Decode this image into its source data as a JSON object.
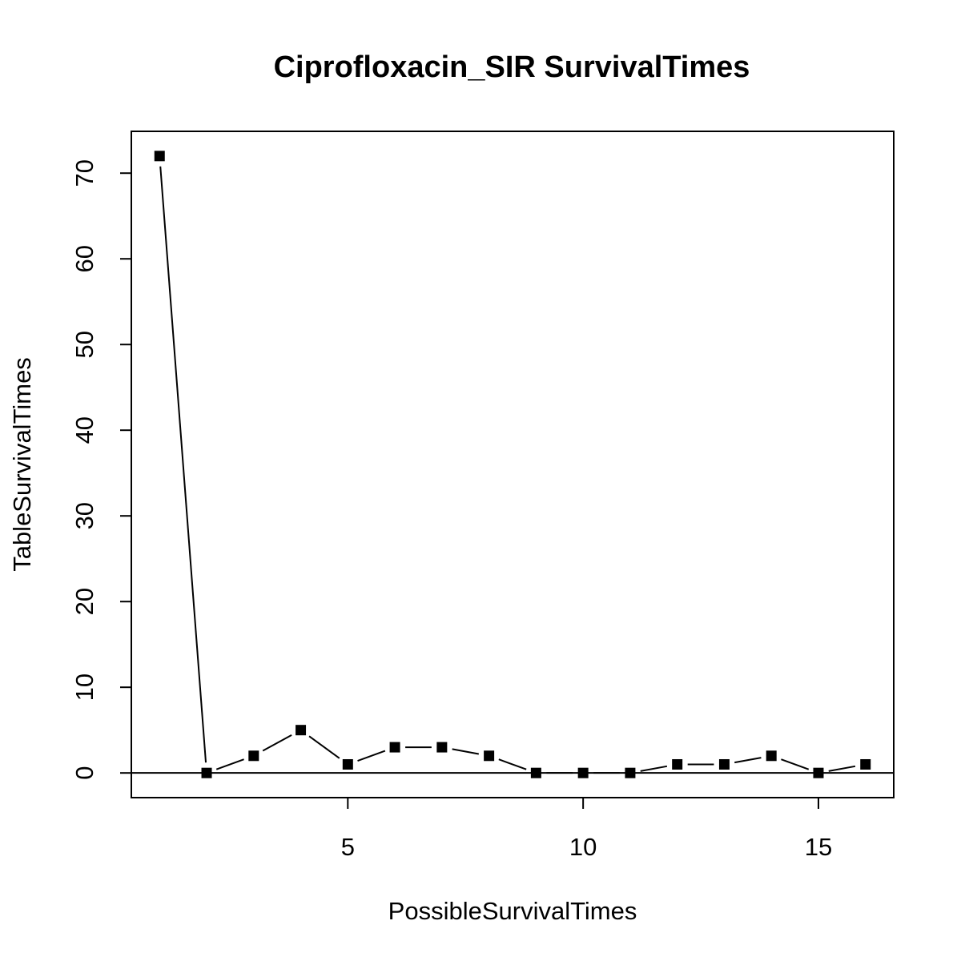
{
  "chart_data": {
    "type": "line",
    "title": "Ciprofloxacin_SIR SurvivalTimes",
    "xlabel": "PossibleSurvivalTimes",
    "ylabel": "TableSurvivalTimes",
    "x": [
      1,
      2,
      3,
      4,
      5,
      6,
      7,
      8,
      9,
      10,
      11,
      12,
      13,
      14,
      15,
      16
    ],
    "series": [
      {
        "values": [
          72,
          0,
          2,
          5,
          1,
          3,
          3,
          2,
          0,
          0,
          0,
          1,
          1,
          2,
          0,
          1
        ]
      }
    ],
    "xlim": [
      0.4,
      16.6
    ],
    "ylim": [
      -2.88,
      74.88
    ],
    "x_ticks": [
      5,
      10,
      15
    ],
    "y_ticks": [
      0,
      10,
      20,
      30,
      40,
      50,
      60,
      70
    ],
    "reference_line_y": 0,
    "marker": "filled-square",
    "grid": false,
    "legend": "none"
  }
}
